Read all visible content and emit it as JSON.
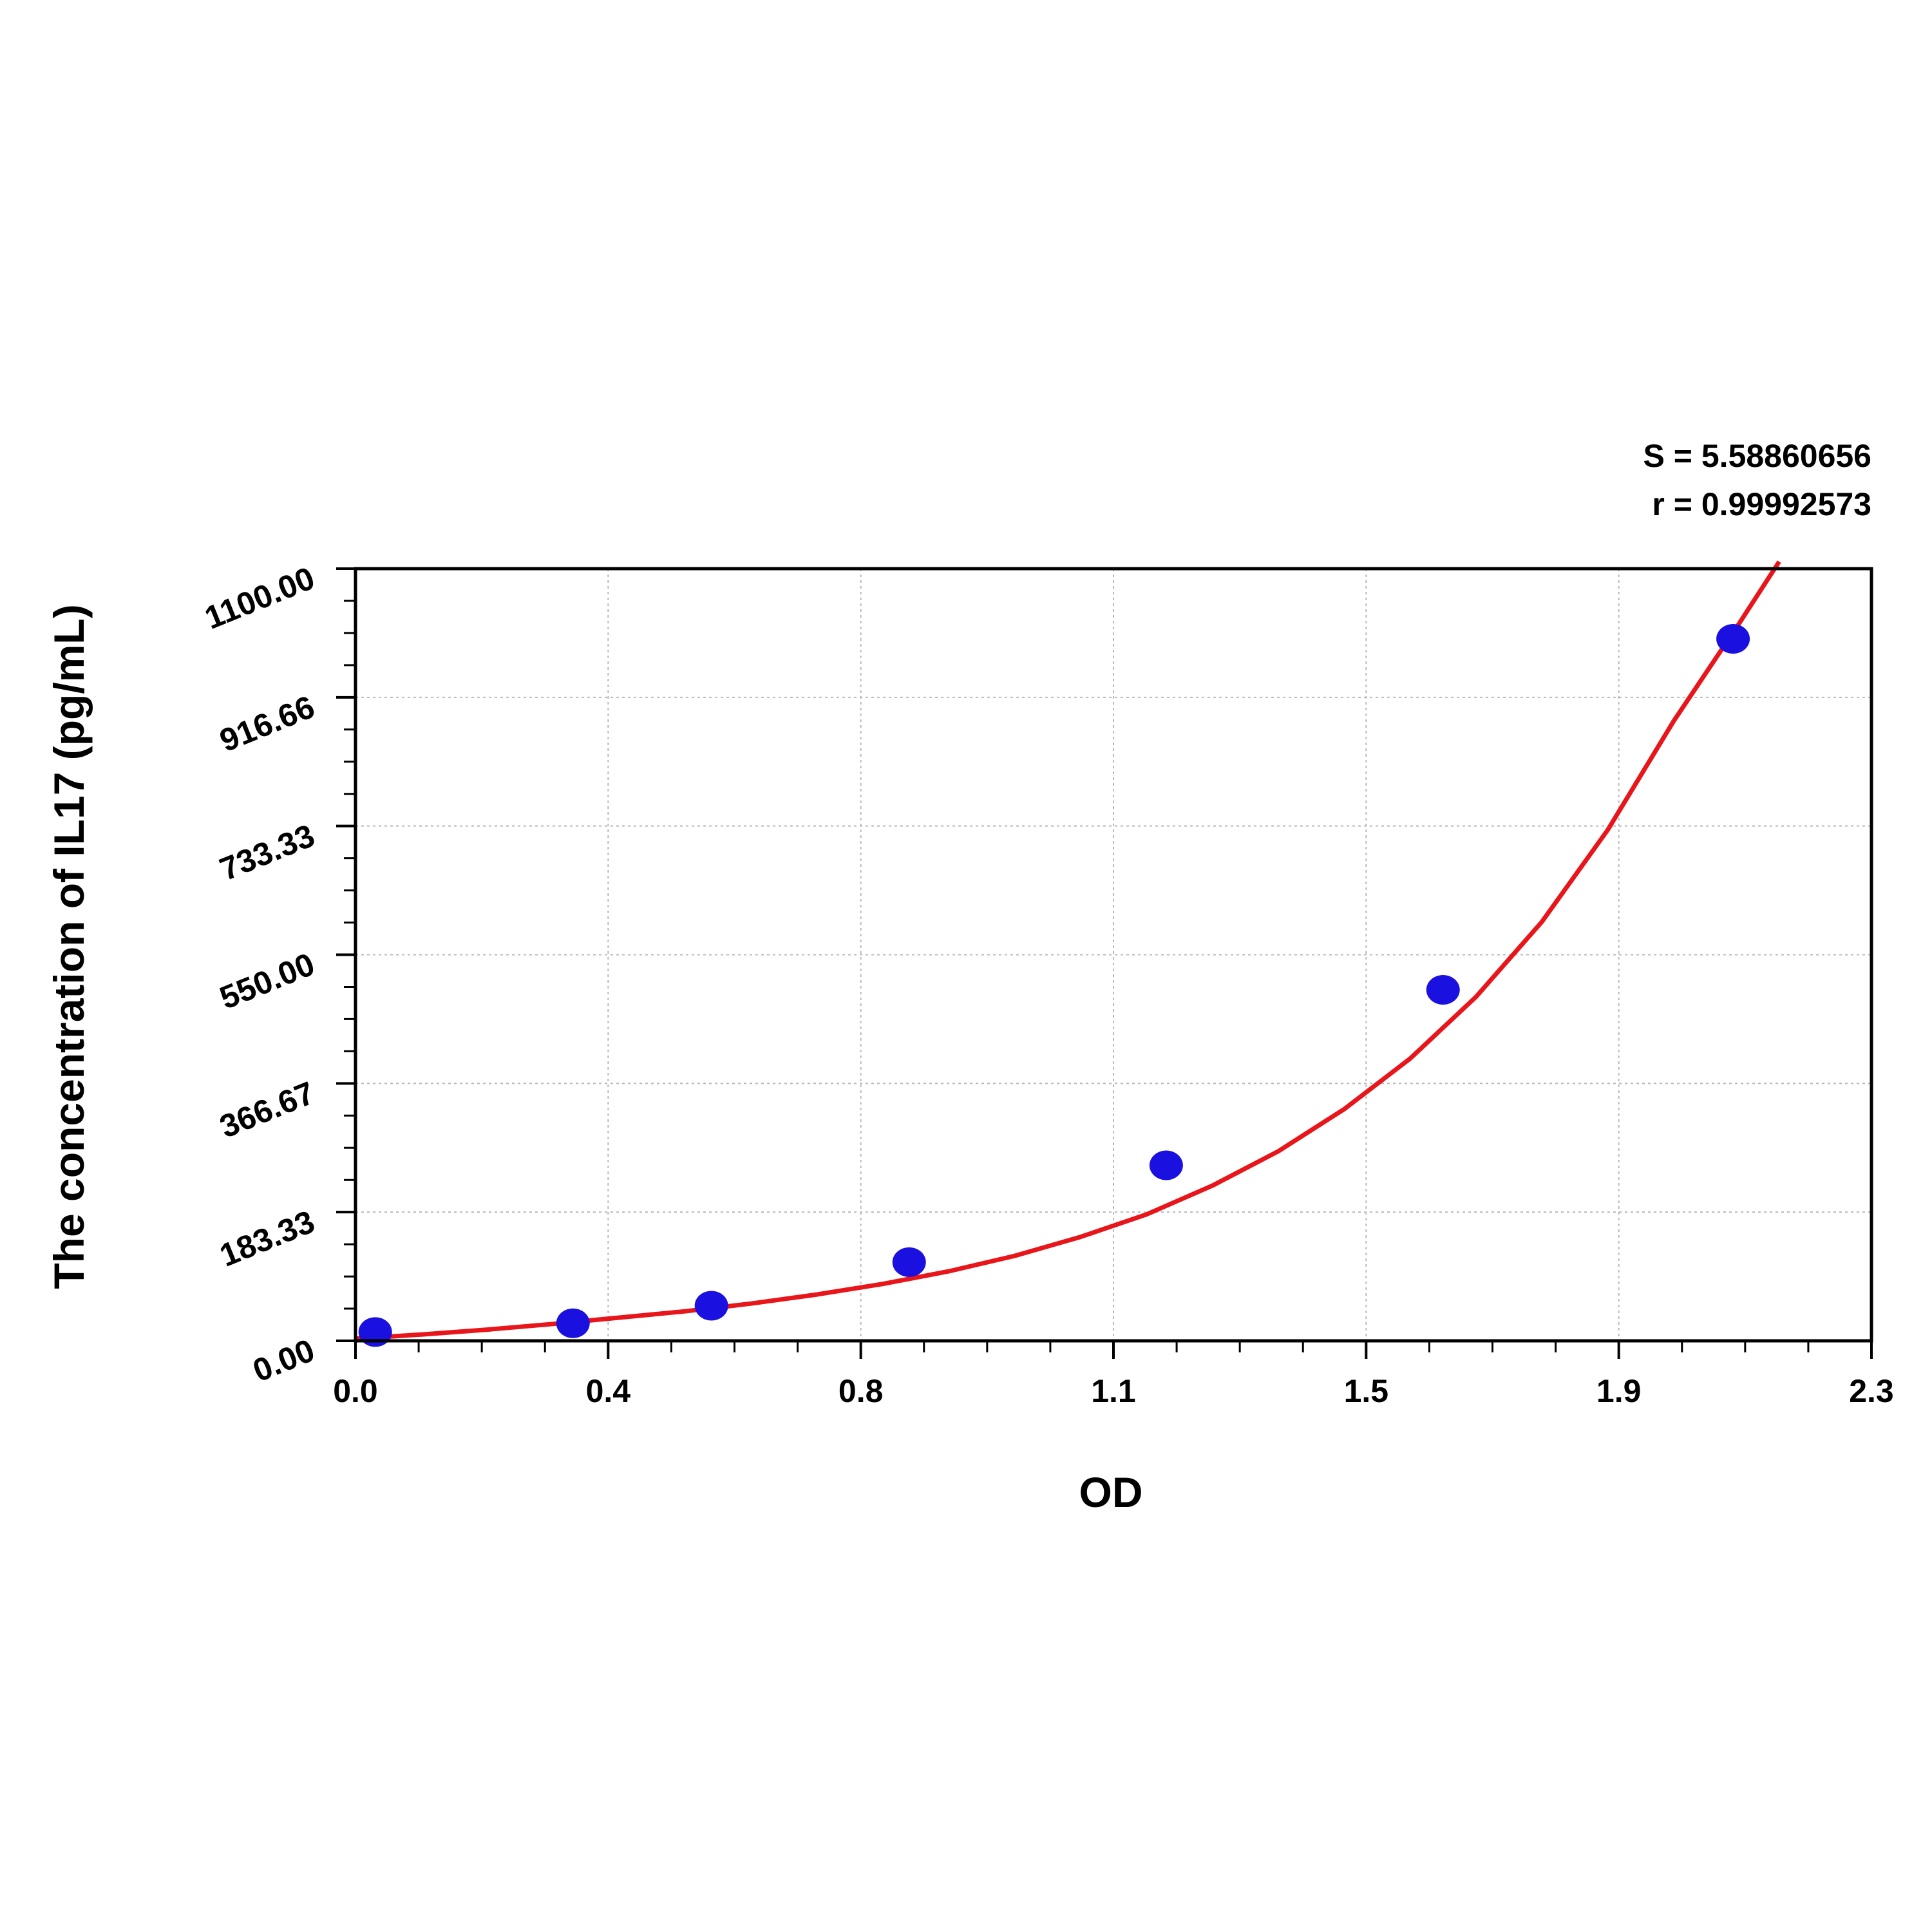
{
  "chart_data": {
    "type": "scatter",
    "xlabel": "OD",
    "ylabel": "The concentration of  IL17 (pg/mL)",
    "xlim": [
      0.0,
      2.3
    ],
    "ylim": [
      0.0,
      1100.0
    ],
    "x_ticks": [
      "0.0",
      "0.4",
      "0.8",
      "1.1",
      "1.5",
      "1.9",
      "2.3"
    ],
    "y_ticks": [
      "0.00",
      "183.33",
      "366.67",
      "550.00",
      "733.33",
      "916.66",
      "1100.00"
    ],
    "grid": true,
    "stats": [
      "S = 5.58860656",
      "r = 0.99992573"
    ],
    "series": [
      {
        "kind": "points",
        "color": "#1a10e0",
        "x": [
          0.03,
          0.33,
          0.54,
          0.84,
          1.23,
          1.65,
          2.09
        ],
        "y": [
          12.5,
          25,
          50,
          112,
          250,
          500,
          1000
        ]
      },
      {
        "kind": "fit-curve",
        "color": "#e8161b",
        "x": [
          0.0,
          0.1,
          0.2,
          0.3,
          0.4,
          0.5,
          0.6,
          0.7,
          0.8,
          0.9,
          1.0,
          1.1,
          1.2,
          1.3,
          1.4,
          1.5,
          1.6,
          1.7,
          1.8,
          1.9,
          2.0,
          2.1,
          2.16
        ],
        "y": [
          3,
          9,
          16,
          24,
          33,
          42,
          53,
          66,
          81,
          99,
          121,
          148,
          180,
          221,
          270,
          330,
          402,
          490,
          597,
          728,
          883,
          1023,
          1110
        ]
      }
    ]
  }
}
